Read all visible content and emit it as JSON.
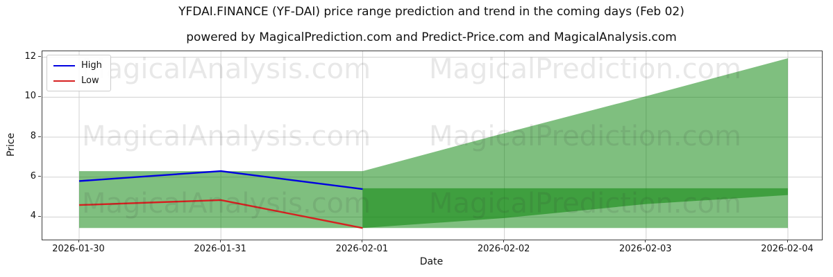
{
  "title": "YFDAI.FINANCE (YF-DAI) price range prediction and trend in the coming days (Feb 02)",
  "subtitle": "powered by MagicalPrediction.com and Predict-Price.com and MagicalAnalysis.com",
  "watermark": {
    "left": "MagicalAnalysis.com",
    "right": "MagicalPrediction.com"
  },
  "axes": {
    "x_label": "Date",
    "y_label": "Price",
    "x_tick_labels": [
      "2026-01-30",
      "2026-01-31",
      "2026-02-01",
      "2026-02-02",
      "2026-02-03",
      "2026-02-04"
    ],
    "y_tick_labels": [
      "4",
      "6",
      "8",
      "10",
      "12"
    ]
  },
  "legend": {
    "items": [
      {
        "label": "High",
        "color": "#0000e0"
      },
      {
        "label": "Low",
        "color": "#d62020"
      }
    ]
  },
  "colors": {
    "band_fill": "#008000",
    "band_alpha": 0.5,
    "grid": "#d0d0d0",
    "high_line": "#0000e0",
    "low_line": "#d62020"
  },
  "chart_data": {
    "type": "line",
    "title": "YFDAI.FINANCE (YF-DAI) price range prediction and trend in the coming days (Feb 02)",
    "xlabel": "Date",
    "ylabel": "Price",
    "x": [
      "2026-01-30",
      "2026-01-31",
      "2026-02-01",
      "2026-02-02",
      "2026-02-03",
      "2026-02-04"
    ],
    "ylim": [
      2.87,
      12.3
    ],
    "y_ticks": [
      4,
      6,
      8,
      10,
      12
    ],
    "grid": true,
    "legend_position": "upper left",
    "series": [
      {
        "name": "High",
        "type": "line",
        "color": "#0000e0",
        "x": [
          "2026-01-30",
          "2026-01-31",
          "2026-02-01"
        ],
        "values": [
          5.8,
          6.3,
          5.4
        ]
      },
      {
        "name": "Low",
        "type": "line",
        "color": "#d62020",
        "x": [
          "2026-01-30",
          "2026-01-31",
          "2026-02-01"
        ],
        "values": [
          4.6,
          4.85,
          3.45
        ]
      }
    ],
    "bands": [
      {
        "name": "historical-range",
        "x": [
          "2026-01-30",
          "2026-01-31",
          "2026-02-01"
        ],
        "upper": [
          6.3,
          6.3,
          6.3
        ],
        "lower": [
          3.45,
          3.45,
          3.45
        ]
      },
      {
        "name": "forecast-outer-range",
        "x": [
          "2026-02-01",
          "2026-02-02",
          "2026-02-03",
          "2026-02-04"
        ],
        "upper": [
          6.3,
          8.2,
          10.05,
          11.95
        ],
        "lower": [
          3.45,
          3.45,
          3.45,
          3.45
        ]
      },
      {
        "name": "forecast-inner-range",
        "x": [
          "2026-02-01",
          "2026-02-02",
          "2026-02-03",
          "2026-02-04"
        ],
        "upper": [
          5.44,
          5.44,
          5.44,
          5.44
        ],
        "lower": [
          3.45,
          3.95,
          4.65,
          5.1
        ]
      }
    ]
  }
}
